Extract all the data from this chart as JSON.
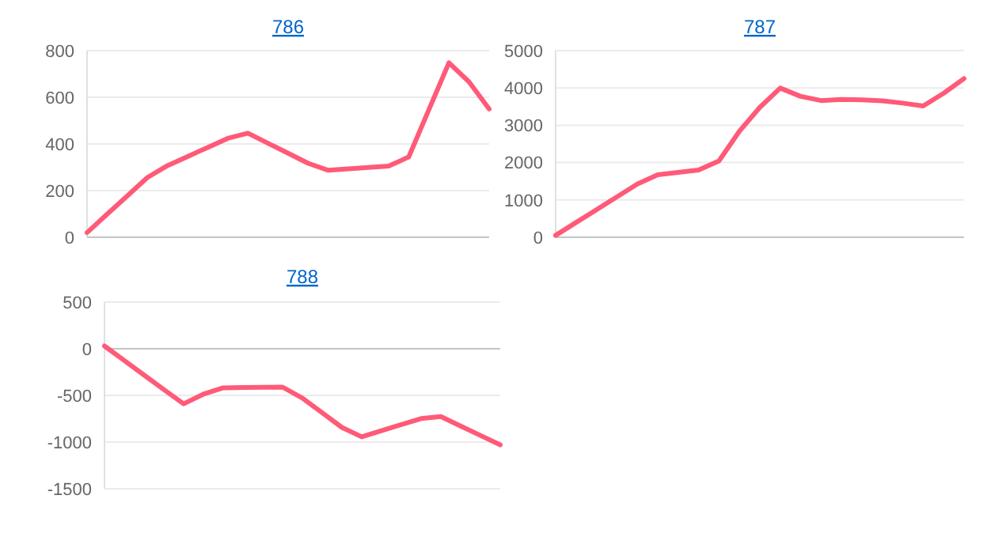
{
  "chart_data": [
    {
      "type": "line",
      "title": "786",
      "categories": [
        null,
        null,
        null,
        null,
        null,
        null,
        null,
        null,
        null,
        null,
        null,
        null,
        null,
        null,
        null,
        null,
        null,
        null,
        null,
        null,
        null
      ],
      "series": [
        {
          "color": "#ff5a78",
          "values": [
            20,
            99,
            177,
            256,
            307,
            346,
            385,
            424,
            446,
            403,
            360,
            317,
            287,
            293,
            299,
            305,
            344,
            546,
            748,
            666,
            550
          ]
        }
      ],
      "ylim": [
        0,
        800
      ],
      "yticks": [
        0,
        200,
        400,
        600,
        800
      ],
      "grid": "y",
      "tick_labels": "y"
    },
    {
      "type": "line",
      "title": "787",
      "categories": [
        null,
        null,
        null,
        null,
        null,
        null,
        null,
        null,
        null,
        null,
        null,
        null,
        null,
        null,
        null,
        null,
        null,
        null,
        null,
        null,
        null
      ],
      "series": [
        {
          "color": "#ff5a78",
          "values": [
            50,
            394,
            738,
            1081,
            1426,
            1672,
            1737,
            1802,
            2045,
            2840,
            3480,
            3996,
            3774,
            3662,
            3690,
            3682,
            3656,
            3594,
            3518,
            3855,
            4250
          ]
        }
      ],
      "ylim": [
        0,
        5000
      ],
      "yticks": [
        0,
        1000,
        2000,
        3000,
        4000,
        5000
      ],
      "grid": "y",
      "tick_labels": "y"
    },
    {
      "type": "line",
      "title": "788",
      "categories": [
        null,
        null,
        null,
        null,
        null,
        null,
        null,
        null,
        null,
        null,
        null,
        null,
        null,
        null,
        null,
        null,
        null,
        null,
        null,
        null,
        null
      ],
      "series": [
        {
          "color": "#ff5a78",
          "values": [
            30,
            -126,
            -282,
            -437,
            -590,
            -487,
            -419,
            -416,
            -413,
            -411,
            -529,
            -686,
            -843,
            -944,
            -878,
            -813,
            -748,
            -727,
            -828,
            -929,
            -1030
          ]
        }
      ],
      "ylim": [
        -1500,
        500
      ],
      "yticks": [
        -1500,
        -1000,
        -500,
        0,
        500
      ],
      "grid": "y",
      "tick_labels": "y"
    }
  ]
}
